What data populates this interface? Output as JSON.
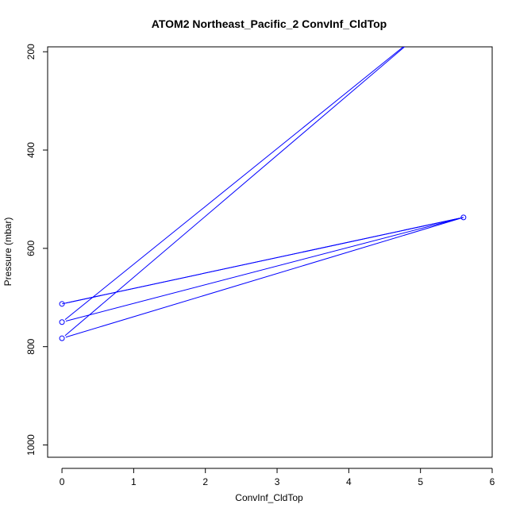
{
  "chart_data": {
    "type": "line",
    "title": "ATOM2 Northeast_Pacific_2 ConvInf_CldTop",
    "xlabel": "ConvInf_CldTop",
    "ylabel": "Pressure (mbar)",
    "xlim": [
      -0.2,
      6.0
    ],
    "ylim": [
      1025,
      190
    ],
    "x_ticks": [
      0,
      1,
      2,
      3,
      4,
      5,
      6
    ],
    "y_ticks": [
      200,
      400,
      600,
      800,
      1000
    ],
    "grid": false,
    "series": [
      {
        "color": "#0000ff",
        "x": [
          0,
          5.6,
          0,
          5.1,
          0,
          5.6,
          0
        ],
        "y": [
          713,
          537,
          750,
          150,
          783,
          537,
          713
        ],
        "markers": [
          true,
          true,
          true,
          false,
          true,
          false,
          false
        ]
      }
    ]
  }
}
